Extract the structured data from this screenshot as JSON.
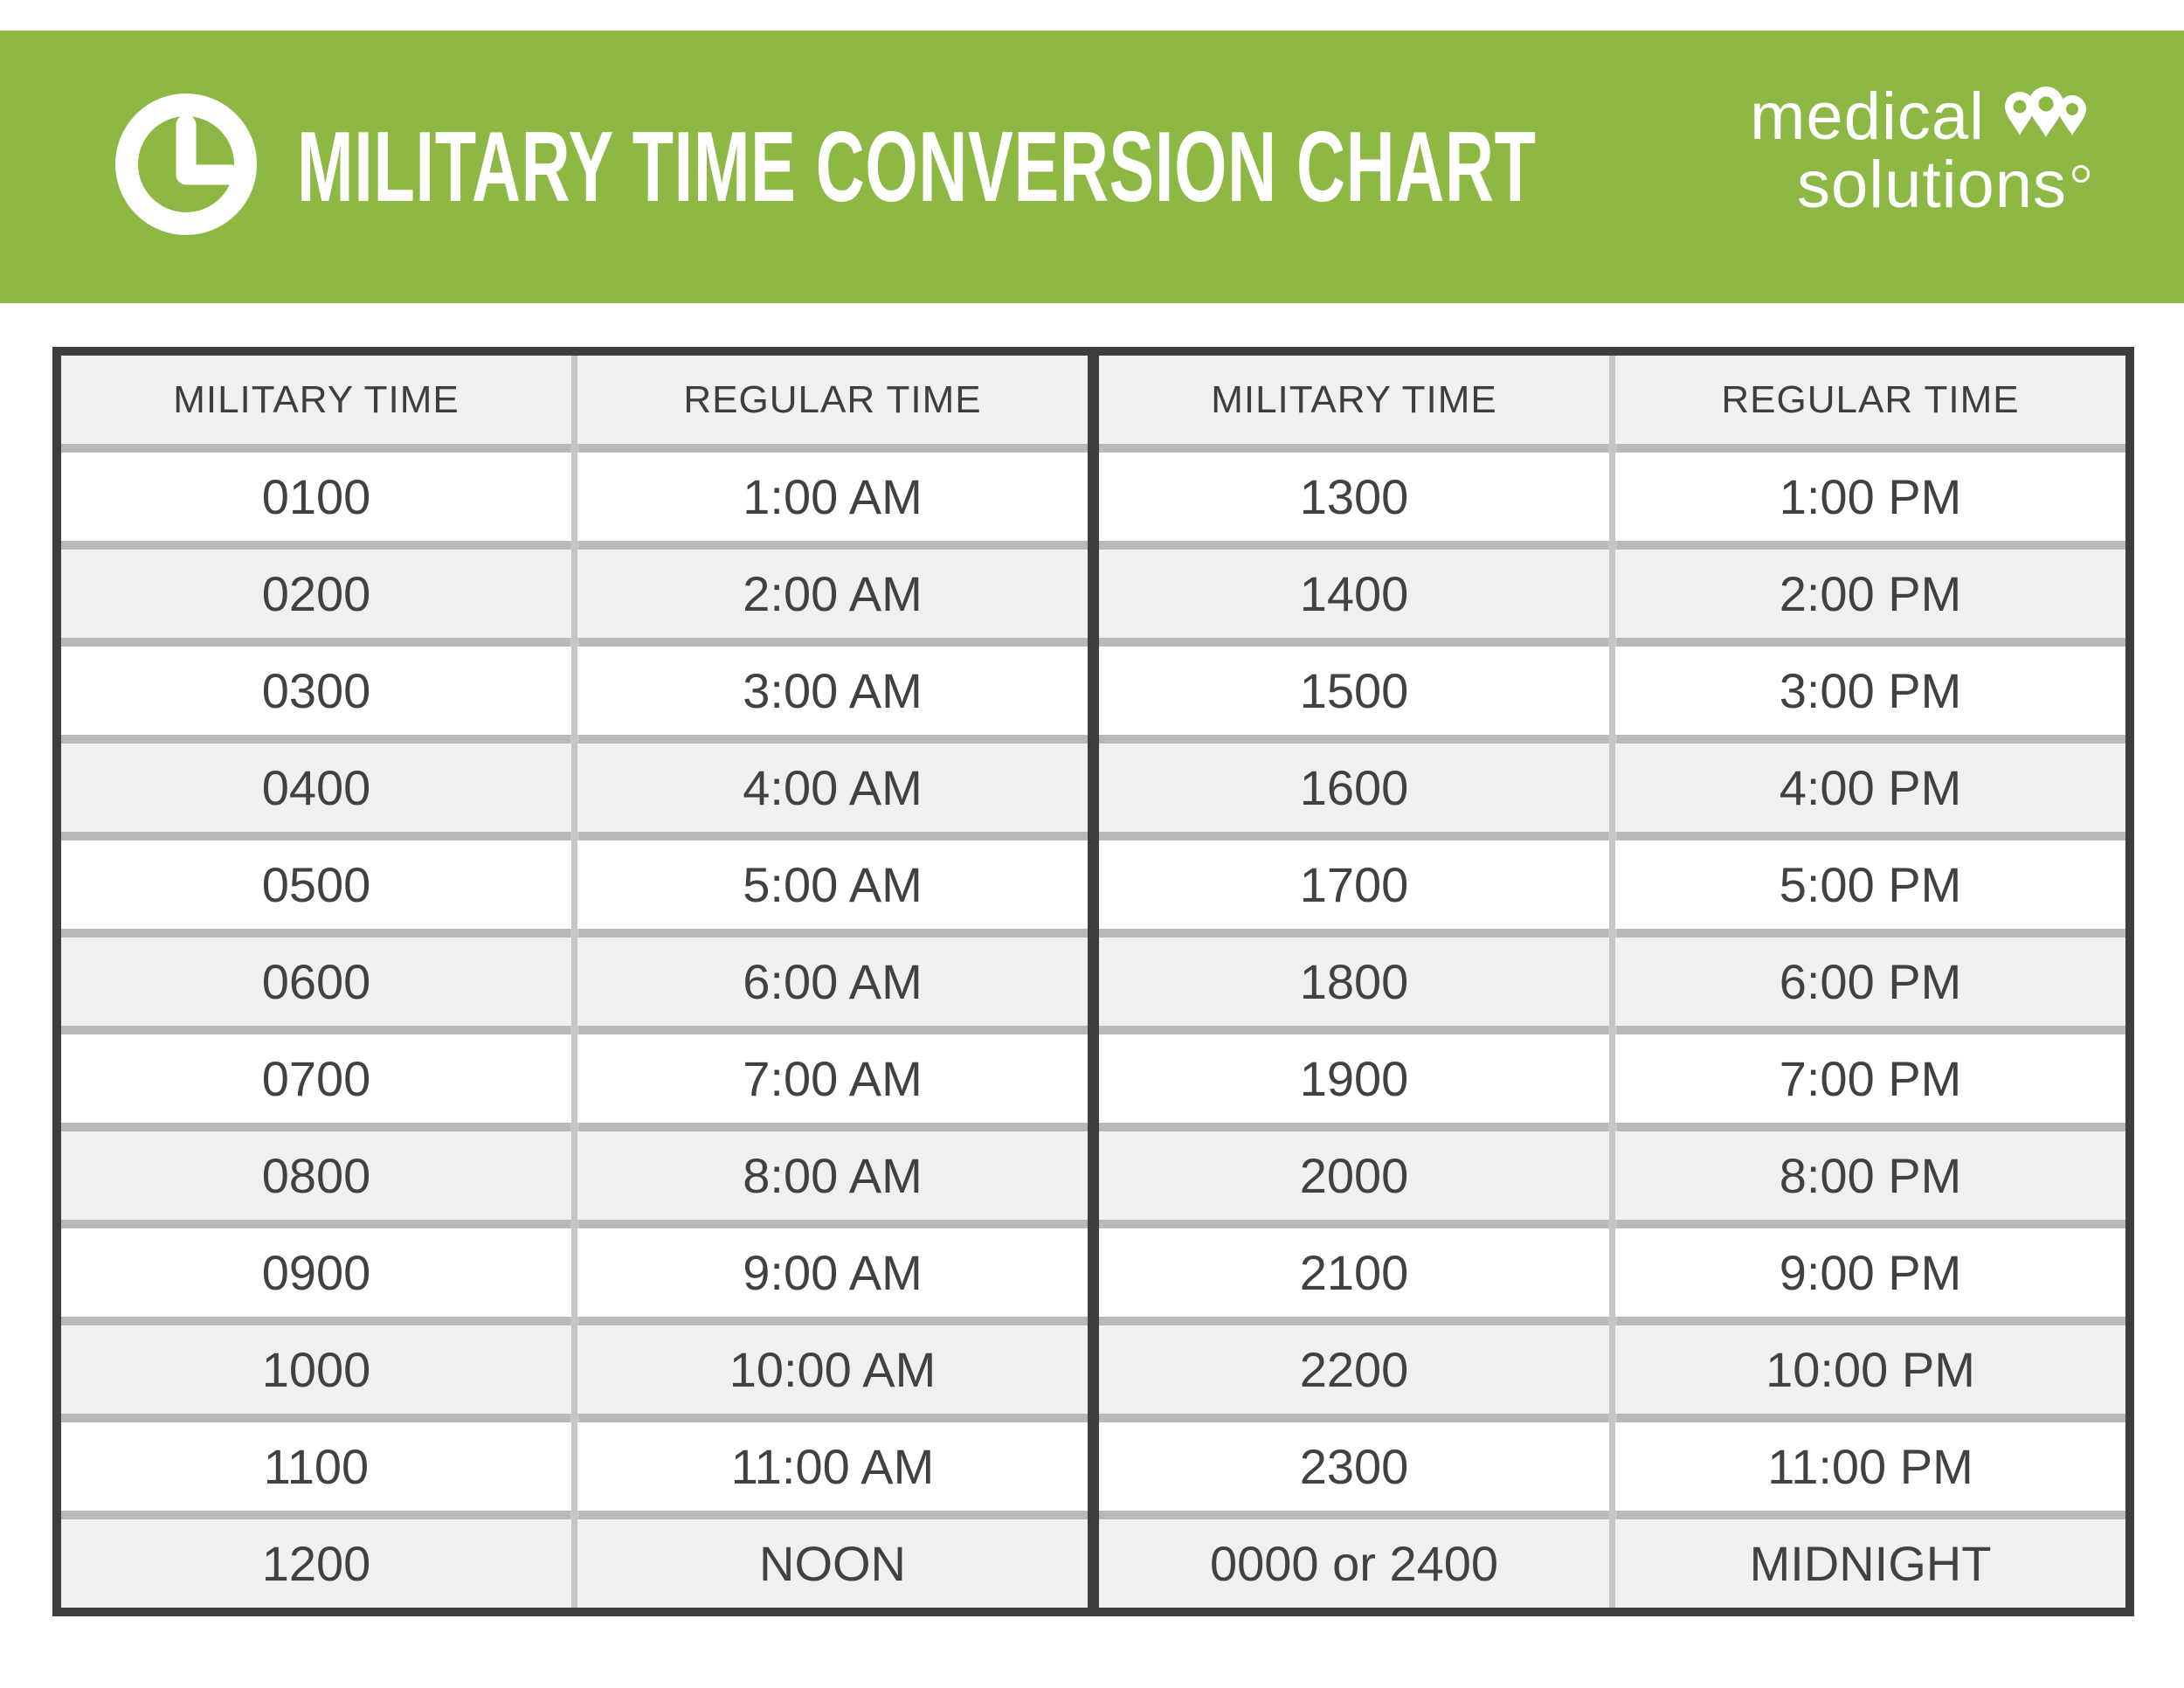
{
  "banner": {
    "title": "MILITARY TIME CONVERSION CHART",
    "logo": {
      "line1": "medical",
      "line2": "solutions"
    },
    "colors": {
      "green": "#8CB843",
      "dark": "#3E3E3E",
      "white": "#FFFFFF"
    }
  },
  "table": {
    "colors": {
      "border": "#3E3E3E",
      "row_separator": "#B9B9B9",
      "column_separator": "#C6C6C6",
      "alt_row_bg": "#F0F0F0",
      "row_bg": "#FFFFFF",
      "text": "#414141"
    },
    "left": {
      "headers": [
        "MILITARY TIME",
        "REGULAR TIME"
      ],
      "rows": [
        [
          "0100",
          "1:00 AM"
        ],
        [
          "0200",
          "2:00 AM"
        ],
        [
          "0300",
          "3:00 AM"
        ],
        [
          "0400",
          "4:00 AM"
        ],
        [
          "0500",
          "5:00 AM"
        ],
        [
          "0600",
          "6:00 AM"
        ],
        [
          "0700",
          "7:00 AM"
        ],
        [
          "0800",
          "8:00 AM"
        ],
        [
          "0900",
          "9:00 AM"
        ],
        [
          "1000",
          "10:00 AM"
        ],
        [
          "1100",
          "11:00 AM"
        ],
        [
          "1200",
          "NOON"
        ]
      ]
    },
    "right": {
      "headers": [
        "MILITARY TIME",
        "REGULAR TIME"
      ],
      "rows": [
        [
          "1300",
          "1:00 PM"
        ],
        [
          "1400",
          "2:00 PM"
        ],
        [
          "1500",
          "3:00 PM"
        ],
        [
          "1600",
          "4:00 PM"
        ],
        [
          "1700",
          "5:00 PM"
        ],
        [
          "1800",
          "6:00 PM"
        ],
        [
          "1900",
          "7:00 PM"
        ],
        [
          "2000",
          "8:00 PM"
        ],
        [
          "2100",
          "9:00 PM"
        ],
        [
          "2200",
          "10:00 PM"
        ],
        [
          "2300",
          "11:00 PM"
        ],
        [
          "0000 or 2400",
          "MIDNIGHT"
        ]
      ]
    }
  }
}
